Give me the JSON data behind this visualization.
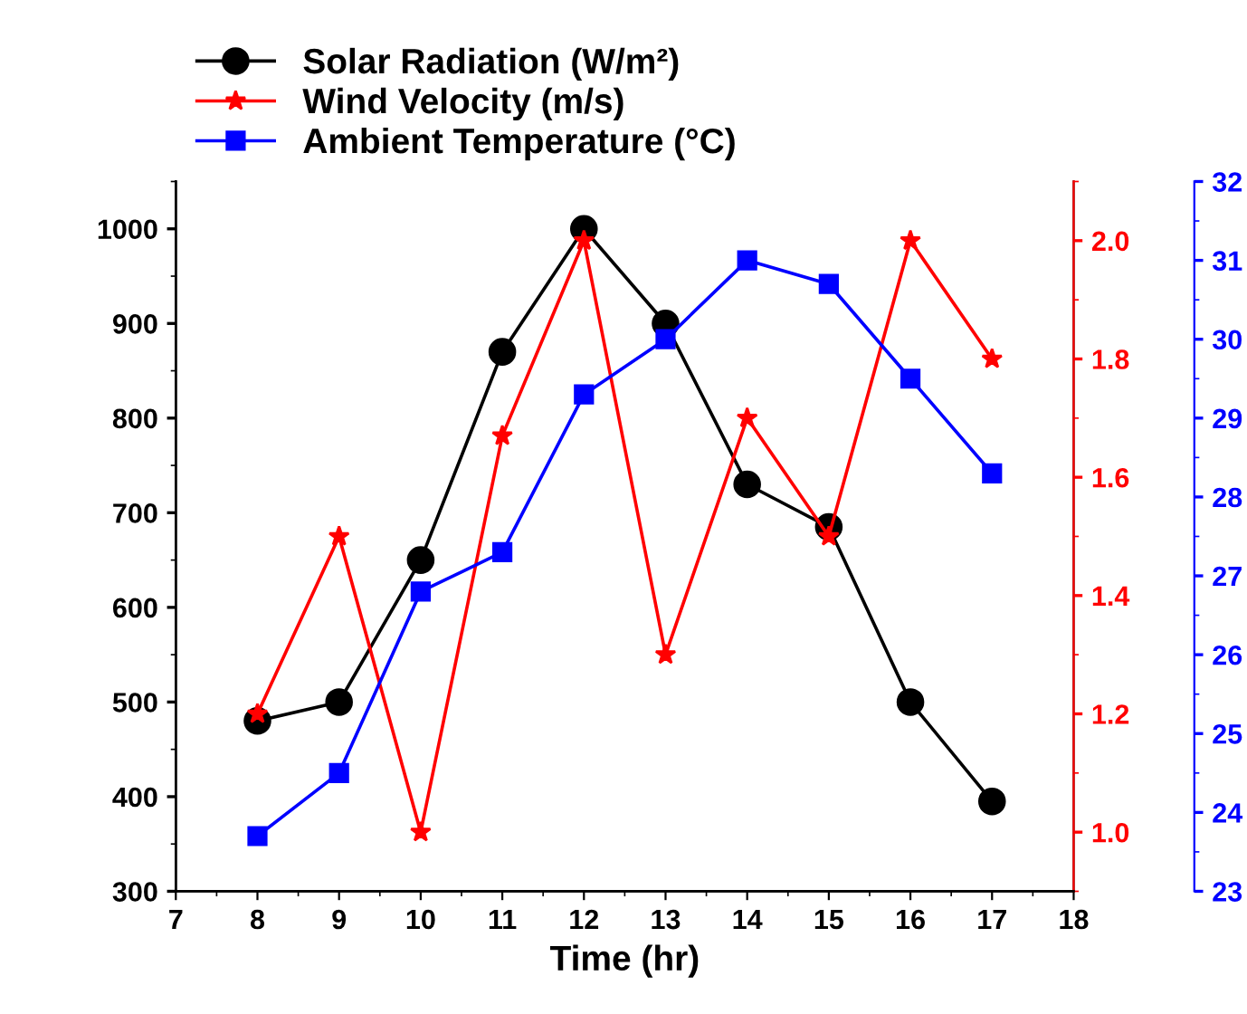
{
  "chart_data": {
    "type": "line",
    "xlabel": "Time (hr)",
    "x": [
      8,
      9,
      10,
      11,
      12,
      13,
      14,
      15,
      16,
      17
    ],
    "series": [
      {
        "name": "Solar Radiation (W/m²)",
        "color": "#000000",
        "marker": "circle",
        "values": [
          480,
          500,
          650,
          870,
          1000,
          900,
          730,
          685,
          500,
          395
        ]
      },
      {
        "name": "Wind Velocity (m/s)",
        "color": "#ff0000",
        "marker": "star",
        "axis": "y2",
        "values": [
          1.2,
          1.5,
          1.0,
          1.67,
          2.0,
          1.3,
          1.7,
          1.5,
          2.0,
          1.8
        ]
      },
      {
        "name": "Ambient Temperature (°C)",
        "color": "#0000ff",
        "marker": "square",
        "axis": "y3",
        "values": [
          23.7,
          24.5,
          26.8,
          27.3,
          29.3,
          30.0,
          31.0,
          30.7,
          29.5,
          28.3
        ]
      }
    ],
    "xlim": [
      7,
      18
    ],
    "xticks": [
      7,
      8,
      9,
      10,
      11,
      12,
      13,
      14,
      15,
      16,
      17,
      18
    ],
    "ylim": [
      300,
      1050
    ],
    "yticks": [
      300,
      400,
      500,
      600,
      700,
      800,
      900,
      1000
    ],
    "y2lim": [
      0.9,
      2.1
    ],
    "y2ticks": [
      {
        "value": 1,
        "label": "1.0"
      },
      1.2,
      1.4,
      1.6,
      1.8,
      {
        "value": 2,
        "label": "2.0"
      }
    ],
    "y3lim": [
      23,
      32
    ],
    "y3ticks": [
      23,
      24,
      25,
      26,
      27,
      28,
      29,
      30,
      31,
      32
    ],
    "grid": false,
    "legend": "top left",
    "line_style": "solid"
  }
}
